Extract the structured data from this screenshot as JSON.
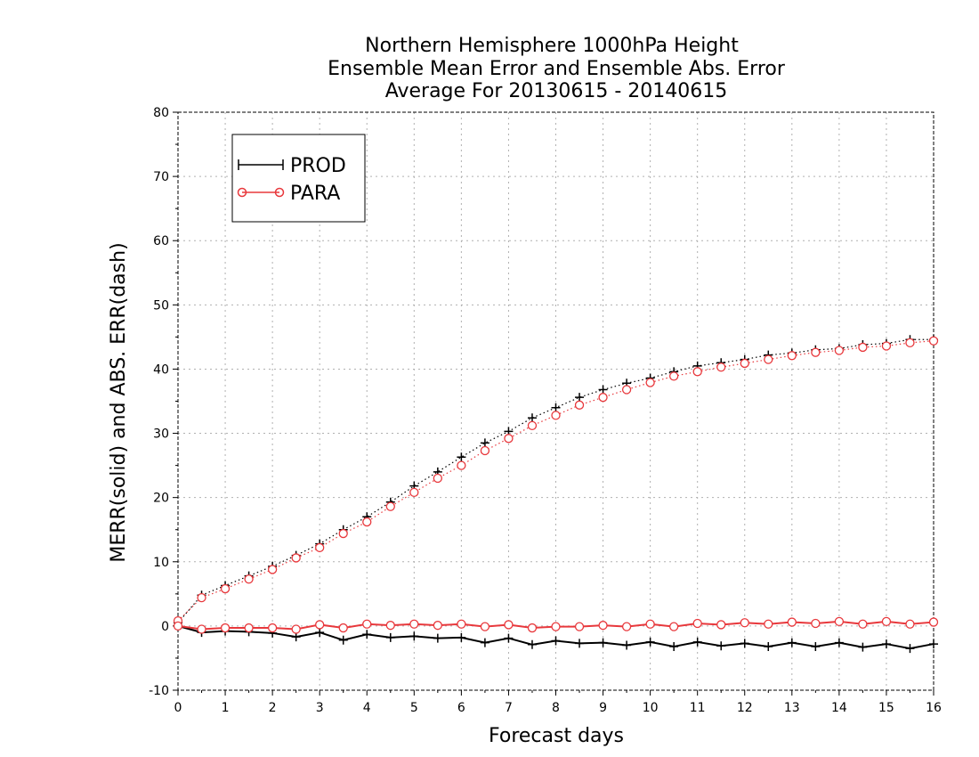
{
  "chart_data": {
    "type": "line",
    "title_lines": [
      "Northern Hemisphere 1000hPa Height",
      "Ensemble Mean Error and Ensemble Abs. Error",
      "Average For 20130615 - 20140615"
    ],
    "xlabel": "Forecast days",
    "ylabel": "MERR(solid) and ABS. ERR(dash)",
    "xlim": [
      0,
      16
    ],
    "ylim": [
      -10,
      80
    ],
    "x_ticks": [
      0,
      1,
      2,
      3,
      4,
      5,
      6,
      7,
      8,
      9,
      10,
      11,
      12,
      13,
      14,
      15,
      16
    ],
    "y_ticks": [
      -10,
      0,
      10,
      20,
      30,
      40,
      50,
      60,
      70,
      80
    ],
    "grid": true,
    "legend_position": "top-left",
    "x": [
      0,
      0.5,
      1,
      1.5,
      2,
      2.5,
      3,
      3.5,
      4,
      4.5,
      5,
      5.5,
      6,
      6.5,
      7,
      7.5,
      8,
      8.5,
      9,
      9.5,
      10,
      10.5,
      11,
      11.5,
      12,
      12.5,
      13,
      13.5,
      14,
      14.5,
      15,
      15.5,
      16
    ],
    "series": [
      {
        "name": "PROD",
        "color": "#000000",
        "marker": "plus",
        "merr": [
          0.0,
          -1.0,
          -0.8,
          -0.9,
          -1.1,
          -1.7,
          -1.0,
          -2.2,
          -1.3,
          -1.8,
          -1.6,
          -1.9,
          -1.8,
          -2.6,
          -1.9,
          -2.9,
          -2.3,
          -2.7,
          -2.6,
          -3.0,
          -2.5,
          -3.2,
          -2.5,
          -3.1,
          -2.7,
          -3.2,
          -2.6,
          -3.2,
          -2.6,
          -3.3,
          -2.8,
          -3.5,
          -2.8
        ],
        "abs_err": [
          0.5,
          4.8,
          6.3,
          7.8,
          9.3,
          11.0,
          12.8,
          15.0,
          17.0,
          19.3,
          21.8,
          24.0,
          26.3,
          28.5,
          30.3,
          32.4,
          34.0,
          35.6,
          36.8,
          37.8,
          38.6,
          39.6,
          40.5,
          41.0,
          41.5,
          42.2,
          42.5,
          43.0,
          43.2,
          43.8,
          44.0,
          44.6,
          44.6
        ]
      },
      {
        "name": "PARA",
        "color": "#e8383c",
        "marker": "circle",
        "merr": [
          0.0,
          -0.5,
          -0.3,
          -0.3,
          -0.3,
          -0.5,
          0.2,
          -0.3,
          0.3,
          0.1,
          0.3,
          0.1,
          0.3,
          -0.1,
          0.2,
          -0.3,
          -0.1,
          -0.1,
          0.1,
          -0.1,
          0.3,
          -0.1,
          0.4,
          0.2,
          0.5,
          0.3,
          0.6,
          0.4,
          0.7,
          0.3,
          0.7,
          0.3,
          0.6
        ],
        "abs_err": [
          0.8,
          4.4,
          5.8,
          7.3,
          8.8,
          10.6,
          12.2,
          14.4,
          16.2,
          18.6,
          20.8,
          23.0,
          25.0,
          27.3,
          29.2,
          31.2,
          32.8,
          34.4,
          35.6,
          36.8,
          37.9,
          38.9,
          39.6,
          40.3,
          40.9,
          41.5,
          42.1,
          42.6,
          42.9,
          43.4,
          43.6,
          44.1,
          44.4
        ]
      }
    ]
  }
}
